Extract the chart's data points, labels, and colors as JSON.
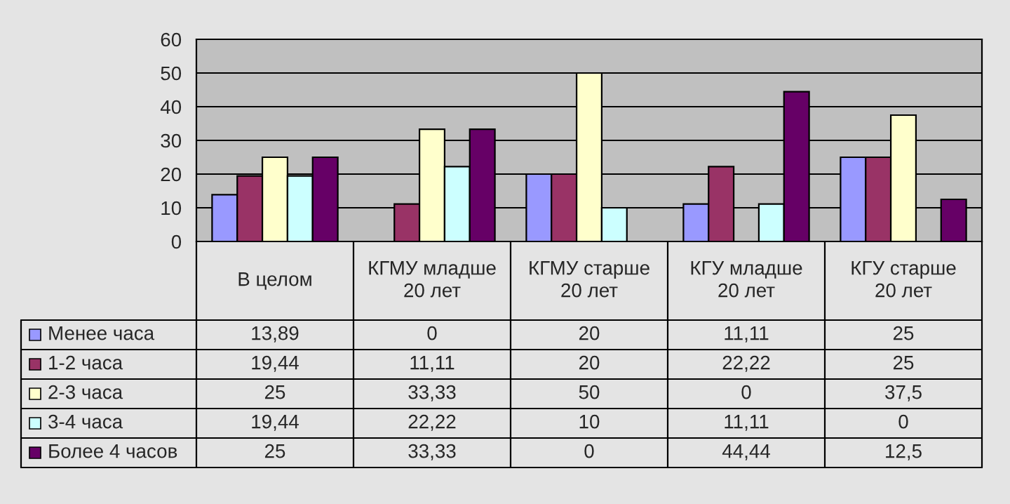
{
  "chart_data": {
    "type": "bar",
    "categories": [
      "В целом",
      "КГМУ младше\n20 лет",
      "КГМУ старше\n20 лет",
      "КГУ младше\n20 лет",
      "КГУ старше\n20 лет"
    ],
    "series": [
      {
        "name": "Менее часа",
        "color": "#9999ff",
        "values": [
          13.89,
          0,
          20,
          11.11,
          25
        ],
        "value_labels": [
          "13,89",
          "0",
          "20",
          "11,11",
          "25"
        ]
      },
      {
        "name": "1-2 часа",
        "color": "#993366",
        "values": [
          19.44,
          11.11,
          20,
          22.22,
          25
        ],
        "value_labels": [
          "19,44",
          "11,11",
          "20",
          "22,22",
          "25"
        ]
      },
      {
        "name": "2-3 часа",
        "color": "#ffffcc",
        "values": [
          25,
          33.33,
          50,
          0,
          37.5
        ],
        "value_labels": [
          "25",
          "33,33",
          "50",
          "0",
          "37,5"
        ]
      },
      {
        "name": "3-4 часа",
        "color": "#ccffff",
        "values": [
          19.44,
          22.22,
          10,
          11.11,
          0
        ],
        "value_labels": [
          "19,44",
          "22,22",
          "10",
          "11,11",
          "0"
        ]
      },
      {
        "name": "Более 4 часов",
        "color": "#660066",
        "values": [
          25,
          33.33,
          0,
          44.44,
          12.5
        ],
        "value_labels": [
          "25",
          "33,33",
          "0",
          "44,44",
          "12,5"
        ]
      }
    ],
    "ylim": [
      0,
      60
    ],
    "yticks": [
      0,
      10,
      20,
      30,
      40,
      50,
      60
    ],
    "grid": "y",
    "legend": "left"
  }
}
